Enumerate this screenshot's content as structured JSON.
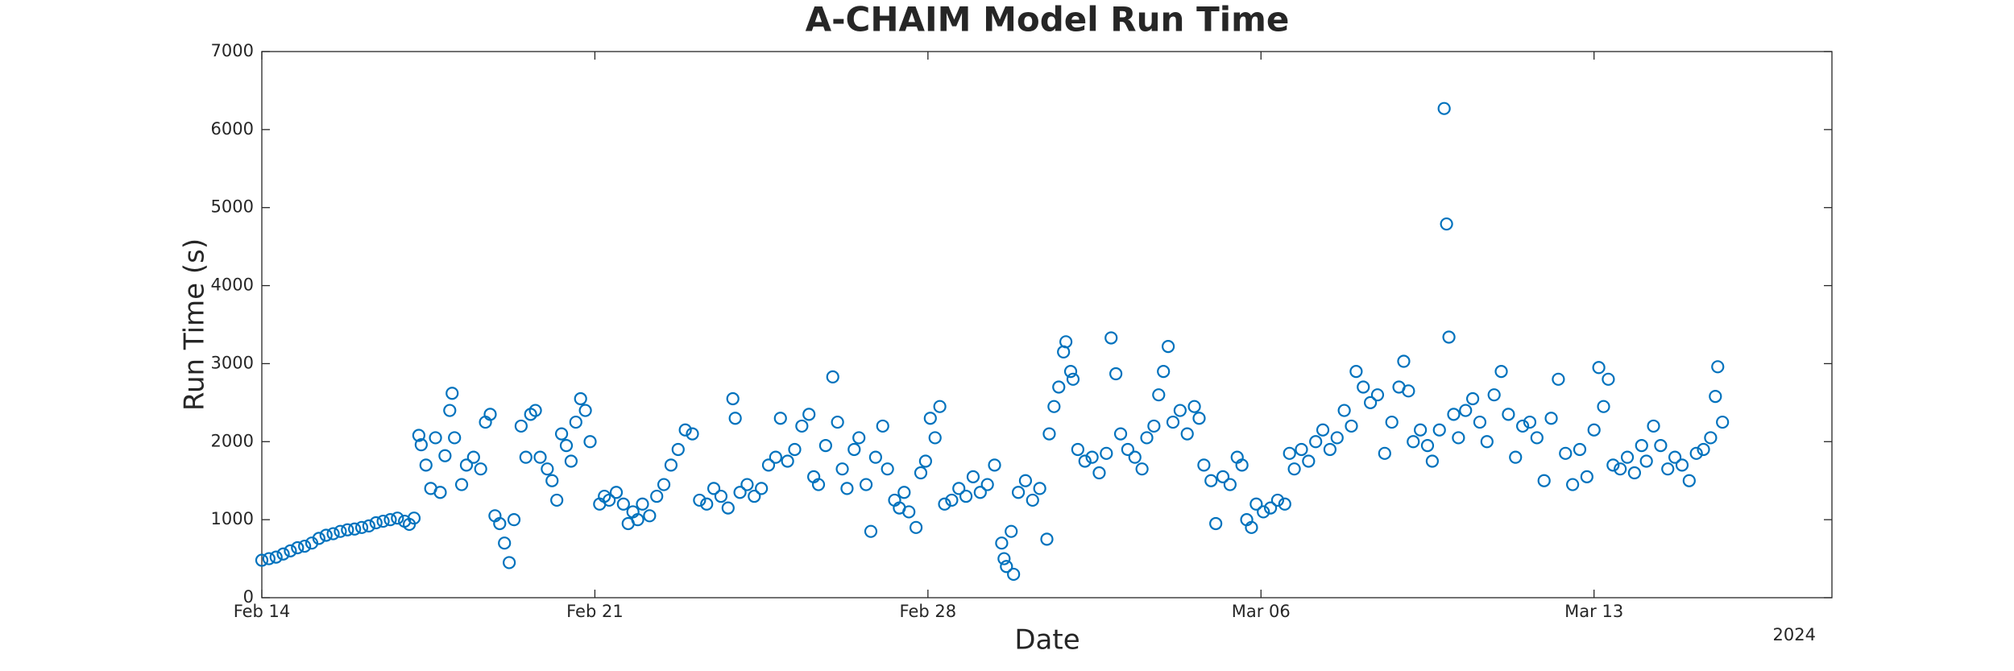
{
  "chart_data": {
    "type": "scatter",
    "title": "A-CHAIM Model Run Time",
    "x_label": "Date",
    "y_label": "Run Time (s)",
    "x_year_label": "2024",
    "color": "#0072bd",
    "xlim": [
      0,
      33
    ],
    "xticks": [
      {
        "value": 0,
        "label": "Feb 14"
      },
      {
        "value": 7,
        "label": "Feb 21"
      },
      {
        "value": 14,
        "label": "Feb 28"
      },
      {
        "value": 21,
        "label": "Mar 06"
      },
      {
        "value": 28,
        "label": "Mar 13"
      }
    ],
    "ylim": [
      0,
      7000
    ],
    "yticks": [
      0,
      1000,
      2000,
      3000,
      4000,
      5000,
      6000,
      7000
    ],
    "x": [
      0,
      0.15,
      0.3,
      0.45,
      0.6,
      0.75,
      0.9,
      1.05,
      1.2,
      1.35,
      1.5,
      1.65,
      1.8,
      1.95,
      2.1,
      2.25,
      2.4,
      2.55,
      2.7,
      2.85,
      3.0,
      3.1,
      3.2,
      3.3,
      3.35,
      3.45,
      3.55,
      3.65,
      3.75,
      3.85,
      3.95,
      4.0,
      4.05,
      4.2,
      4.3,
      4.45,
      4.6,
      4.7,
      4.8,
      4.9,
      5.0,
      5.1,
      5.2,
      5.3,
      5.45,
      5.55,
      5.65,
      5.75,
      5.85,
      6.0,
      6.1,
      6.2,
      6.3,
      6.4,
      6.5,
      6.6,
      6.7,
      6.8,
      6.9,
      7.1,
      7.2,
      7.3,
      7.45,
      7.6,
      7.7,
      7.8,
      7.9,
      8.0,
      8.15,
      8.3,
      8.45,
      8.6,
      8.75,
      8.9,
      9.05,
      9.2,
      9.35,
      9.5,
      9.65,
      9.8,
      9.9,
      9.95,
      10.05,
      10.2,
      10.35,
      10.5,
      10.65,
      10.8,
      10.9,
      11.05,
      11.2,
      11.35,
      11.5,
      11.6,
      11.7,
      11.85,
      12.0,
      12.1,
      12.2,
      12.3,
      12.45,
      12.55,
      12.7,
      12.8,
      12.9,
      13.05,
      13.15,
      13.3,
      13.4,
      13.5,
      13.6,
      13.75,
      13.85,
      13.95,
      14.05,
      14.15,
      14.25,
      14.35,
      14.5,
      14.65,
      14.8,
      14.95,
      15.1,
      15.25,
      15.4,
      15.55,
      15.6,
      15.65,
      15.75,
      15.8,
      15.9,
      16.05,
      16.2,
      16.35,
      16.5,
      16.55,
      16.65,
      16.75,
      16.85,
      16.9,
      17.0,
      17.05,
      17.15,
      17.3,
      17.45,
      17.6,
      17.75,
      17.85,
      17.95,
      18.05,
      18.2,
      18.35,
      18.5,
      18.6,
      18.75,
      18.85,
      18.95,
      19.05,
      19.15,
      19.3,
      19.45,
      19.6,
      19.7,
      19.8,
      19.95,
      20.05,
      20.2,
      20.35,
      20.5,
      20.6,
      20.7,
      20.8,
      20.9,
      21.05,
      21.2,
      21.35,
      21.5,
      21.6,
      21.7,
      21.85,
      22.0,
      22.15,
      22.3,
      22.45,
      22.6,
      22.75,
      22.9,
      23.0,
      23.15,
      23.3,
      23.45,
      23.6,
      23.75,
      23.9,
      24.0,
      24.1,
      24.2,
      24.35,
      24.5,
      24.6,
      24.75,
      24.85,
      24.9,
      24.95,
      25.05,
      25.15,
      25.3,
      25.45,
      25.6,
      25.75,
      25.9,
      26.05,
      26.2,
      26.35,
      26.5,
      26.65,
      26.8,
      26.95,
      27.1,
      27.25,
      27.4,
      27.55,
      27.7,
      27.85,
      28.0,
      28.1,
      28.2,
      28.3,
      28.4,
      28.55,
      28.7,
      28.85,
      29.0,
      29.1,
      29.25,
      29.4,
      29.55,
      29.7,
      29.85,
      30.0,
      30.15,
      30.3,
      30.45,
      30.55,
      30.6,
      30.7
    ],
    "values": [
      480,
      500,
      520,
      560,
      600,
      640,
      660,
      700,
      760,
      800,
      820,
      850,
      870,
      880,
      900,
      920,
      960,
      980,
      1000,
      1020,
      980,
      940,
      1020,
      2080,
      1960,
      1700,
      1400,
      2050,
      1350,
      1820,
      2400,
      2620,
      2050,
      1450,
      1700,
      1800,
      1650,
      2250,
      2350,
      1050,
      950,
      700,
      450,
      1000,
      2200,
      1800,
      2350,
      2400,
      1800,
      1650,
      1500,
      1250,
      2100,
      1950,
      1750,
      2250,
      2550,
      2400,
      2000,
      1200,
      1300,
      1250,
      1350,
      1200,
      950,
      1100,
      1000,
      1200,
      1050,
      1300,
      1450,
      1700,
      1900,
      2150,
      2100,
      1250,
      1200,
      1400,
      1300,
      1150,
      2550,
      2300,
      1350,
      1450,
      1300,
      1400,
      1700,
      1800,
      2300,
      1750,
      1900,
      2200,
      2350,
      1550,
      1450,
      1950,
      2830,
      2250,
      1650,
      1400,
      1900,
      2050,
      1450,
      850,
      1800,
      2200,
      1650,
      1250,
      1150,
      1350,
      1100,
      900,
      1600,
      1750,
      2300,
      2050,
      2450,
      1200,
      1250,
      1400,
      1300,
      1550,
      1350,
      1450,
      1700,
      700,
      500,
      400,
      850,
      300,
      1350,
      1500,
      1250,
      1400,
      750,
      2100,
      2450,
      2700,
      3150,
      3280,
      2900,
      2800,
      1900,
      1750,
      1800,
      1600,
      1850,
      3330,
      2870,
      2100,
      1900,
      1800,
      1650,
      2050,
      2200,
      2600,
      2900,
      3220,
      2250,
      2400,
      2100,
      2450,
      2300,
      1700,
      1500,
      950,
      1550,
      1450,
      1800,
      1700,
      1000,
      900,
      1200,
      1100,
      1150,
      1250,
      1200,
      1850,
      1650,
      1900,
      1750,
      2000,
      2150,
      1900,
      2050,
      2400,
      2200,
      2900,
      2700,
      2500,
      2600,
      1850,
      2250,
      2700,
      3030,
      2650,
      2000,
      2150,
      1950,
      1750,
      2150,
      6270,
      4790,
      3340,
      2350,
      2050,
      2400,
      2550,
      2250,
      2000,
      2600,
      2900,
      2350,
      1800,
      2200,
      2250,
      2050,
      1500,
      2300,
      2800,
      1850,
      1450,
      1900,
      1550,
      2150,
      2950,
      2450,
      2800,
      1700,
      1650,
      1800,
      1600,
      1950,
      1750,
      2200,
      1950,
      1650,
      1800,
      1700,
      1500,
      1850,
      1900,
      2050,
      2580,
      2960,
      2250
    ]
  }
}
